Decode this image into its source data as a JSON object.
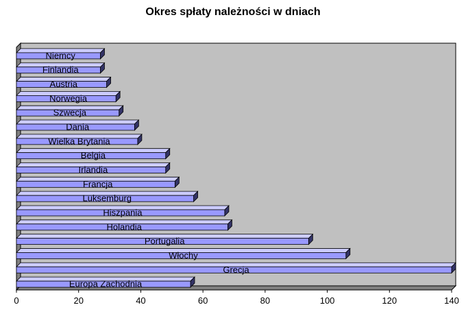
{
  "chart_data": {
    "type": "bar",
    "orientation": "horizontal",
    "title": "Okres spłaty należności w dniach",
    "xlabel": "",
    "ylabel": "",
    "xlim": [
      0,
      140
    ],
    "x_ticks": [
      0,
      20,
      40,
      60,
      80,
      100,
      120,
      140
    ],
    "categories": [
      "Niemcy",
      "Finlandia",
      "Austria",
      "Norwegia",
      "Szwecja",
      "Dania",
      "Wielka Brytania",
      "Belgia",
      "Irlandia",
      "Francja",
      "Luksemburg",
      "Hiszpania",
      "Holandia",
      "Portugalia",
      "Włochy",
      "Grecja",
      "Europa Zachodnia"
    ],
    "values": [
      27,
      27,
      29,
      32,
      33,
      38,
      39,
      48,
      48,
      51,
      57,
      67,
      68,
      94,
      106,
      140,
      56
    ],
    "grid": false,
    "legend": "none",
    "colors": {
      "bar_face": "#9999ff",
      "bar_top": "#ccccff",
      "bar_side": "#333366",
      "plot_background": "#c0c0c0",
      "wall_left": "#808080",
      "floor": "#808080"
    }
  }
}
